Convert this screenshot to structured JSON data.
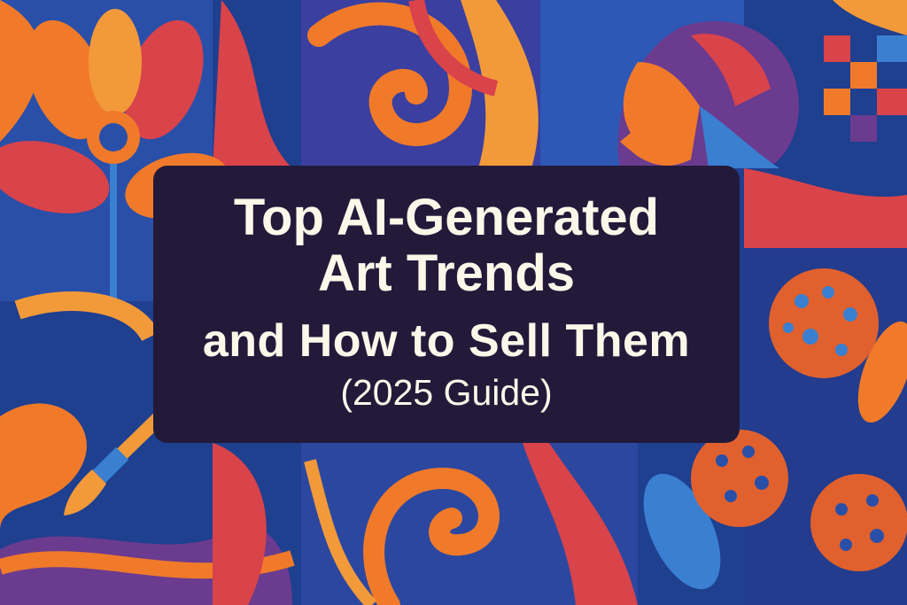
{
  "title": {
    "line1": "Top AI-Generated",
    "line2": "Art Trends",
    "line3": "and How to Sell Them",
    "line4": "(2025 Guide)"
  },
  "colors": {
    "background_blue": "#1f3f8f",
    "orange": "#f07a2a",
    "red": "#d9434a",
    "purple": "#6a3b8f",
    "title_box": "#231a3a",
    "title_text": "#fbf8ea"
  },
  "icons": [
    "flower-icon",
    "paintbrush-icon",
    "face-profile-icon",
    "patterned-ball-icon"
  ]
}
